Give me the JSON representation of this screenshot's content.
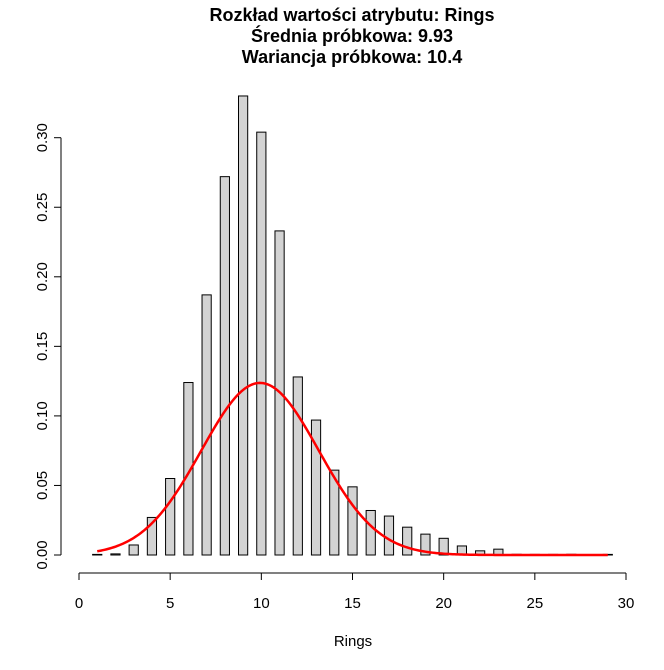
{
  "chart_data": {
    "type": "bar",
    "title_lines": [
      "Rozkład wartości atrybutu: Rings",
      "Średnia próbkowa: 9.93",
      "Wariancja próbkowa: 10.4"
    ],
    "xlabel": "Rings",
    "ylabel": "",
    "xlim": [
      0,
      30
    ],
    "ylim": [
      0,
      0.33
    ],
    "x_ticks": [
      "0",
      "5",
      "10",
      "15",
      "20",
      "25",
      "30"
    ],
    "y_ticks": [
      "0.00",
      "0.05",
      "0.10",
      "0.15",
      "0.20",
      "0.25",
      "0.30"
    ],
    "x": [
      1,
      2,
      3,
      4,
      5,
      6,
      7,
      8,
      9,
      10,
      11,
      12,
      13,
      14,
      15,
      16,
      17,
      18,
      19,
      20,
      21,
      22,
      23,
      24,
      25,
      26,
      27,
      29
    ],
    "values": [
      0.0003,
      0.0008,
      0.0072,
      0.027,
      0.055,
      0.124,
      0.187,
      0.272,
      0.33,
      0.304,
      0.233,
      0.128,
      0.097,
      0.061,
      0.049,
      0.032,
      0.028,
      0.02,
      0.015,
      0.012,
      0.0065,
      0.003,
      0.0042,
      0.0005,
      0.0003,
      0.0003,
      0.0005,
      0.0003
    ],
    "curve": {
      "type": "normal_density",
      "mean": 9.93,
      "variance": 10.4,
      "x_from": 1,
      "x_to": 29,
      "color": "#ff0000"
    },
    "bar_fill": "#d3d3d3",
    "bar_stroke": "#000000",
    "grid": false,
    "legend": "none"
  }
}
